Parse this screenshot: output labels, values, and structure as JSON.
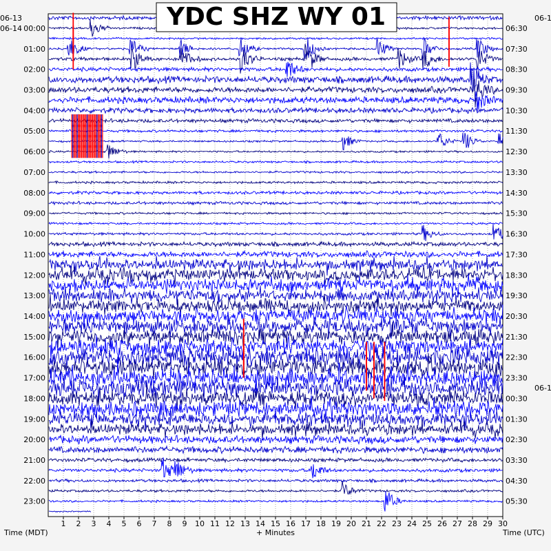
{
  "chart_data": {
    "type": "helicorder",
    "title": "YDC SHZ WY 01",
    "xlabel": "+ Minutes",
    "left_axis_label": "Time (MDT)",
    "right_axis_label": "Time (UTC)",
    "left_date_labels": [
      "06-13",
      "06-14"
    ],
    "right_date_labels": [
      "06-1",
      "06-1"
    ],
    "x_ticks": [
      1,
      2,
      3,
      4,
      5,
      6,
      7,
      8,
      9,
      10,
      11,
      12,
      13,
      14,
      15,
      16,
      17,
      18,
      19,
      20,
      21,
      22,
      23,
      24,
      25,
      26,
      27,
      28,
      29,
      30
    ],
    "xlim": [
      0,
      30
    ],
    "left_hour_labels": [
      "00:00",
      "01:00",
      "02:00",
      "03:00",
      "04:00",
      "05:00",
      "06:00",
      "07:00",
      "08:00",
      "09:00",
      "10:00",
      "11:00",
      "12:00",
      "13:00",
      "14:00",
      "15:00",
      "16:00",
      "17:00",
      "18:00",
      "19:00",
      "20:00",
      "21:00",
      "22:00",
      "23:00"
    ],
    "right_hour_labels": [
      "06:30",
      "07:30",
      "08:30",
      "09:30",
      "10:30",
      "11:30",
      "12:30",
      "13:30",
      "14:30",
      "15:30",
      "16:30",
      "17:30",
      "18:30",
      "19:30",
      "20:30",
      "21:30",
      "22:30",
      "23:30",
      "00:30",
      "01:30",
      "02:30",
      "03:30",
      "04:30",
      "05:30"
    ],
    "trace_count": 49,
    "minutes_per_trace": 30,
    "trace_colors": [
      "#0000cc",
      "#000080",
      "#0000ff"
    ],
    "clip_color": "#ff0000",
    "noise_level_by_trace": [
      0.9,
      0.5,
      0.45,
      0.5,
      0.8,
      0.9,
      1.6,
      1.4,
      1.5,
      1.2,
      0.9,
      0.6,
      0.45,
      0.45,
      0.5,
      0.5,
      0.55,
      0.7,
      0.7,
      0.5,
      0.5,
      0.6,
      1.0,
      1.4,
      2.4,
      2.6,
      2.7,
      2.8,
      2.8,
      2.9,
      3.0,
      3.2,
      3.4,
      3.6,
      3.8,
      3.8,
      3.6,
      3.2,
      3.2,
      2.8,
      2.4,
      1.8,
      1.5,
      0.9,
      0.8,
      0.7,
      0.6,
      0.5,
      0.3
    ],
    "clipped_segments": [
      {
        "trace": 10,
        "start_min": 1.55,
        "end_min": 3.65
      },
      {
        "trace": 11,
        "start_min": 1.55,
        "end_min": 3.65
      },
      {
        "trace": 12,
        "start_min": 1.55,
        "end_min": 3.65
      },
      {
        "trace": 13,
        "start_min": 1.55,
        "end_min": 3.65
      }
    ],
    "spikes": [
      {
        "trace": 1,
        "minute": 1.65,
        "amplitude": 3.0,
        "clipped": true
      },
      {
        "trace": 2,
        "minute": 1.65,
        "amplitude": 2.5,
        "clipped": true
      },
      {
        "trace": 3,
        "minute": 1.65,
        "amplitude": 2.5,
        "clipped": true
      },
      {
        "trace": 4,
        "minute": 1.65,
        "amplitude": 2.0,
        "clipped": true
      },
      {
        "trace": 1,
        "minute": 26.45,
        "amplitude": 2.2,
        "clipped": true
      },
      {
        "trace": 2,
        "minute": 26.45,
        "amplitude": 2.5,
        "clipped": true
      },
      {
        "trace": 3,
        "minute": 26.45,
        "amplitude": 2.5,
        "clipped": true
      },
      {
        "trace": 4,
        "minute": 26.45,
        "amplitude": 1.5,
        "clipped": true
      },
      {
        "trace": 31,
        "minute": 12.9,
        "amplitude": 3.5,
        "clipped": true
      },
      {
        "trace": 32,
        "minute": 12.9,
        "amplitude": 3.5,
        "clipped": true
      },
      {
        "trace": 33,
        "minute": 12.9,
        "amplitude": 3.5,
        "clipped": true
      },
      {
        "trace": 34,
        "minute": 12.9,
        "amplitude": 2.0,
        "clipped": true
      },
      {
        "trace": 33,
        "minute": 21.0,
        "amplitude": 3.0,
        "clipped": true
      },
      {
        "trace": 34,
        "minute": 21.0,
        "amplitude": 3.0,
        "clipped": true
      },
      {
        "trace": 35,
        "minute": 21.0,
        "amplitude": 2.5,
        "clipped": true
      },
      {
        "trace": 33,
        "minute": 21.5,
        "amplitude": 3.0,
        "clipped": true
      },
      {
        "trace": 34,
        "minute": 21.5,
        "amplitude": 3.0,
        "clipped": true
      },
      {
        "trace": 35,
        "minute": 21.5,
        "amplitude": 3.0,
        "clipped": true
      },
      {
        "trace": 36,
        "minute": 21.5,
        "amplitude": 2.0,
        "clipped": true
      },
      {
        "trace": 33,
        "minute": 22.2,
        "amplitude": 3.0,
        "clipped": true
      },
      {
        "trace": 34,
        "minute": 22.2,
        "amplitude": 3.0,
        "clipped": true
      },
      {
        "trace": 35,
        "minute": 22.2,
        "amplitude": 3.0,
        "clipped": true
      },
      {
        "trace": 36,
        "minute": 22.2,
        "amplitude": 2.5,
        "clipped": true
      }
    ],
    "events": [
      {
        "trace": 1,
        "minute": 2.9,
        "amplitude": 1.3
      },
      {
        "trace": 3,
        "minute": 1.4,
        "amplitude": 1.8
      },
      {
        "trace": 3,
        "minute": 5.5,
        "amplitude": 1.5
      },
      {
        "trace": 4,
        "minute": 5.6,
        "amplitude": 1.6
      },
      {
        "trace": 3,
        "minute": 8.7,
        "amplitude": 1.4
      },
      {
        "trace": 4,
        "minute": 8.8,
        "amplitude": 1.6
      },
      {
        "trace": 3,
        "minute": 12.7,
        "amplitude": 1.8
      },
      {
        "trace": 4,
        "minute": 12.8,
        "amplitude": 1.8
      },
      {
        "trace": 3,
        "minute": 17.0,
        "amplitude": 2.0
      },
      {
        "trace": 4,
        "minute": 17.1,
        "amplitude": 2.0
      },
      {
        "trace": 3,
        "minute": 21.8,
        "amplitude": 1.4
      },
      {
        "trace": 4,
        "minute": 23.2,
        "amplitude": 1.4
      },
      {
        "trace": 3,
        "minute": 24.8,
        "amplitude": 1.5
      },
      {
        "trace": 4,
        "minute": 24.8,
        "amplitude": 1.5
      },
      {
        "trace": 3,
        "minute": 28.4,
        "amplitude": 1.6
      },
      {
        "trace": 4,
        "minute": 28.4,
        "amplitude": 1.6
      },
      {
        "trace": 5,
        "minute": 15.8,
        "amplitude": 1.5
      },
      {
        "trace": 6,
        "minute": 28.0,
        "amplitude": 2.0
      },
      {
        "trace": 7,
        "minute": 28.2,
        "amplitude": 2.2
      },
      {
        "trace": 8,
        "minute": 28.3,
        "amplitude": 1.4
      },
      {
        "trace": 12,
        "minute": 19.5,
        "amplitude": 1.2
      },
      {
        "trace": 12,
        "minute": 25.8,
        "amplitude": 1.3
      },
      {
        "trace": 12,
        "minute": 27.5,
        "amplitude": 1.4
      },
      {
        "trace": 12,
        "minute": 29.8,
        "amplitude": 1.4
      },
      {
        "trace": 13,
        "minute": 4.0,
        "amplitude": 1.2
      },
      {
        "trace": 21,
        "minute": 24.8,
        "amplitude": 1.1
      },
      {
        "trace": 21,
        "minute": 29.5,
        "amplitude": 1.3
      },
      {
        "trace": 44,
        "minute": 7.6,
        "amplitude": 1.6
      },
      {
        "trace": 44,
        "minute": 8.5,
        "amplitude": 1.4
      },
      {
        "trace": 44,
        "minute": 17.5,
        "amplitude": 1.3
      },
      {
        "trace": 46,
        "minute": 19.5,
        "amplitude": 1.2
      },
      {
        "trace": 47,
        "minute": 22.3,
        "amplitude": 1.8
      },
      {
        "trace": 48,
        "minute": 22.3,
        "amplitude": 1.8
      }
    ],
    "grid": true,
    "legend": "none"
  }
}
